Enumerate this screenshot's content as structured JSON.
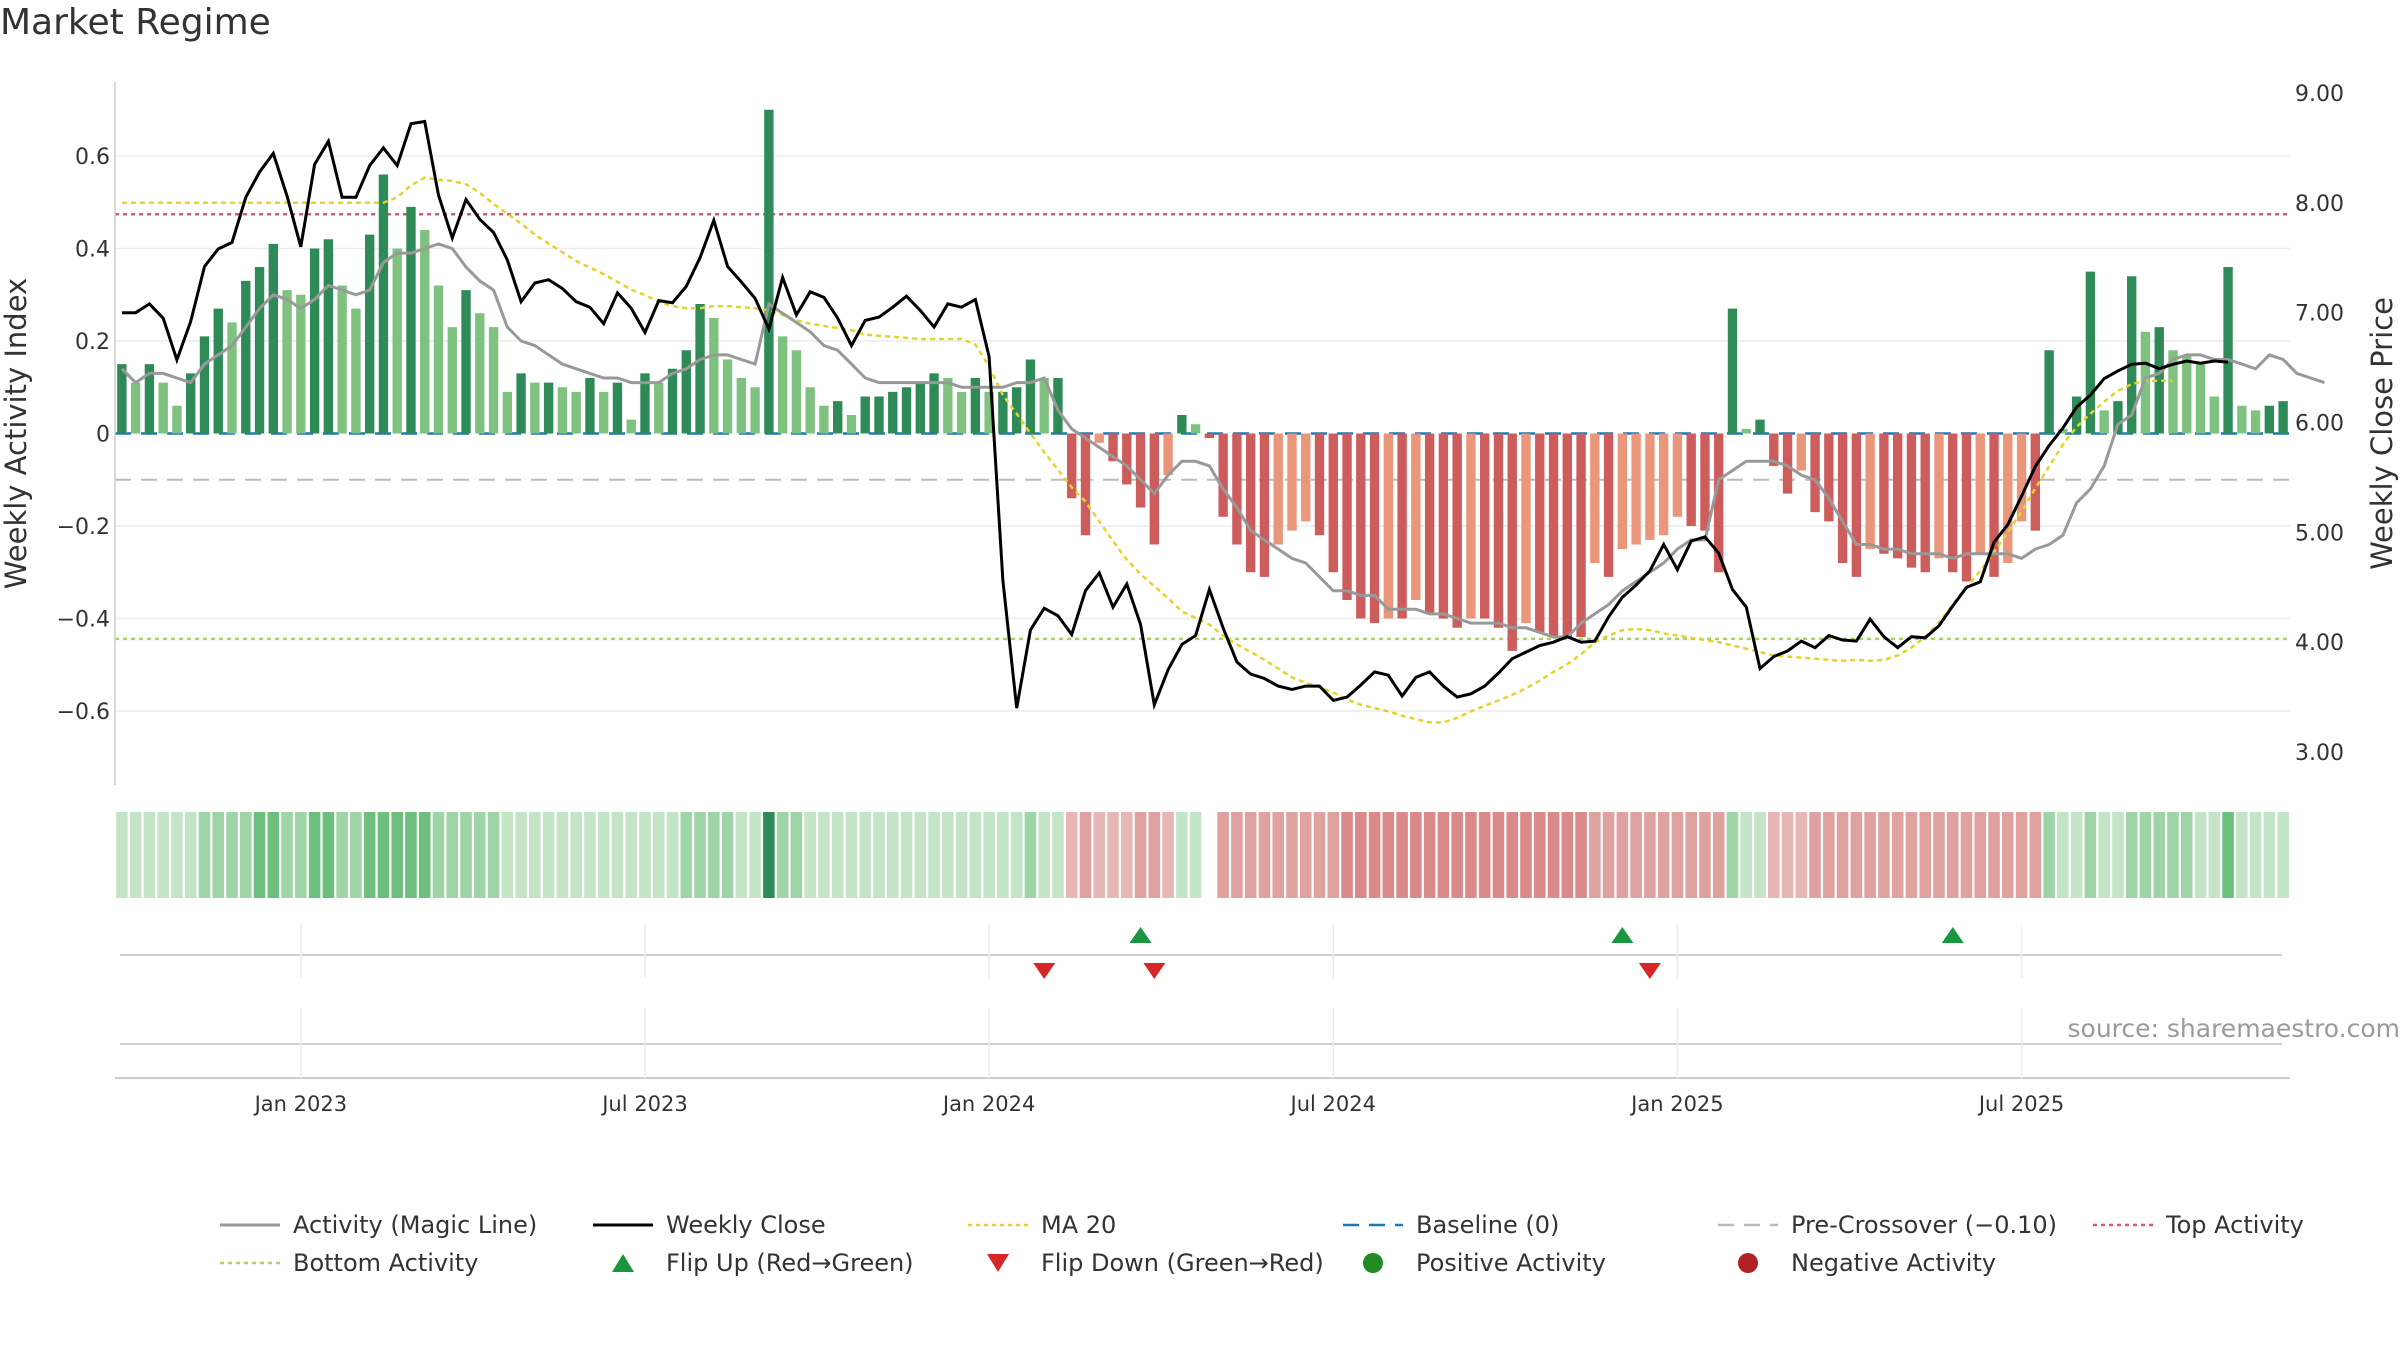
{
  "title": "Market Regime",
  "source": "source: sharemaestro.com",
  "colors": {
    "pos_strong": "#2e8b57",
    "pos_weak": "#7fc27f",
    "neg_strong": "#cd5c5c",
    "neg_weak": "#e9967a",
    "close": "#000000",
    "magic": "#999999",
    "ma": "#e6d32a",
    "baseline": "#1f77b4",
    "precross": "#bbbbbb",
    "top": "#d9577a",
    "bottom": "#a3d65c",
    "flip_up": "#1a9641",
    "flip_down": "#d62728",
    "positive": "#228b22",
    "negative": "#b22222"
  },
  "chart_data": {
    "type": "bar+line",
    "title": "Market Regime",
    "y_left_label": "Weekly Activity Index",
    "y_right_label": "Weekly Close Price",
    "y_left_ticks": [
      0.6,
      0.4,
      0.2,
      0,
      -0.2,
      -0.4,
      -0.6
    ],
    "y_left_tick_labels": [
      "0.6",
      "0.4",
      "0.2",
      "0",
      "−0.2",
      "−0.4",
      "−0.6"
    ],
    "y_left_range": [
      -0.76,
      0.76
    ],
    "y_right_ticks": [
      9,
      8,
      7,
      6,
      5,
      4,
      3
    ],
    "y_right_tick_labels": [
      "9.00",
      "8.00",
      "7.00",
      "6.00",
      "5.00",
      "4.00",
      "3.00"
    ],
    "y_right_range": [
      2.7,
      9.1
    ],
    "x_tick_labels": [
      "Jan 2023",
      "Jul 2023",
      "Jan 2024",
      "Jul 2024",
      "Jan 2025",
      "Jul 2025"
    ],
    "x_tick_week_index": [
      13,
      38,
      63,
      88,
      113,
      138
    ],
    "top_activity": 0.474,
    "bottom_activity": -0.444,
    "pre_crossover": -0.1,
    "baseline": 0,
    "activity_index": [
      0.15,
      0.11,
      0.15,
      0.11,
      0.06,
      0.13,
      0.21,
      0.27,
      0.24,
      0.33,
      0.36,
      0.41,
      0.31,
      0.3,
      0.4,
      0.42,
      0.32,
      0.27,
      0.43,
      0.56,
      0.4,
      0.49,
      0.44,
      0.32,
      0.23,
      0.31,
      0.26,
      0.23,
      0.09,
      0.13,
      0.11,
      0.11,
      0.1,
      0.09,
      0.12,
      0.09,
      0.11,
      0.03,
      0.13,
      0.11,
      0.14,
      0.18,
      0.28,
      0.25,
      0.16,
      0.12,
      0.1,
      0.7,
      0.21,
      0.18,
      0.1,
      0.06,
      0.07,
      0.04,
      0.08,
      0.08,
      0.09,
      0.1,
      0.11,
      0.13,
      0.12,
      0.09,
      0.12,
      0.09,
      0.09,
      0.1,
      0.16,
      0.12,
      0.12,
      -0.14,
      -0.22,
      -0.02,
      -0.06,
      -0.11,
      -0.16,
      -0.24,
      -0.09,
      0.04,
      0.02,
      -0.01,
      -0.18,
      -0.24,
      -0.3,
      -0.31,
      -0.24,
      -0.21,
      -0.19,
      -0.22,
      -0.3,
      -0.36,
      -0.4,
      -0.41,
      -0.4,
      -0.4,
      -0.36,
      -0.39,
      -0.4,
      -0.42,
      -0.4,
      -0.4,
      -0.42,
      -0.47,
      -0.41,
      -0.43,
      -0.44,
      -0.44,
      -0.44,
      -0.28,
      -0.31,
      -0.25,
      -0.24,
      -0.23,
      -0.22,
      -0.18,
      -0.2,
      -0.21,
      -0.3,
      0.27,
      0.01,
      0.03,
      -0.07,
      -0.13,
      -0.08,
      -0.17,
      -0.19,
      -0.28,
      -0.31,
      -0.25,
      -0.26,
      -0.27,
      -0.29,
      -0.3,
      -0.27,
      -0.3,
      -0.32,
      -0.26,
      -0.31,
      -0.28,
      -0.19,
      -0.21,
      0.18,
      0.01,
      0.08,
      0.35,
      0.05,
      0.07,
      0.34,
      0.22,
      0.23,
      0.18,
      0.17,
      0.15,
      0.08,
      0.36,
      0.06,
      0.05,
      0.06,
      0.07
    ],
    "weekly_close": [
      7.0,
      7.0,
      7.08,
      6.95,
      6.57,
      6.92,
      7.42,
      7.58,
      7.64,
      8.05,
      8.28,
      8.45,
      8.06,
      7.6,
      8.35,
      8.56,
      8.05,
      8.05,
      8.34,
      8.5,
      8.34,
      8.72,
      8.74,
      8.07,
      7.68,
      8.03,
      7.85,
      7.73,
      7.48,
      7.1,
      7.27,
      7.3,
      7.22,
      7.1,
      7.05,
      6.9,
      7.18,
      7.04,
      6.82,
      7.11,
      7.09,
      7.24,
      7.5,
      7.84,
      7.42,
      7.28,
      7.13,
      6.85,
      7.32,
      6.98,
      7.19,
      7.14,
      6.95,
      6.7,
      6.93,
      6.96,
      7.05,
      7.15,
      7.02,
      6.87,
      7.08,
      7.05,
      7.12,
      6.6,
      4.56,
      3.4,
      4.11,
      4.31,
      4.24,
      4.07,
      4.47,
      4.63,
      4.32,
      4.53,
      4.16,
      3.43,
      3.75,
      3.98,
      4.06,
      4.48,
      4.13,
      3.82,
      3.71,
      3.67,
      3.6,
      3.57,
      3.6,
      3.6,
      3.47,
      3.5,
      3.61,
      3.73,
      3.7,
      3.51,
      3.68,
      3.73,
      3.6,
      3.5,
      3.53,
      3.6,
      3.72,
      3.85,
      3.91,
      3.97,
      4.0,
      4.05,
      4.0,
      4.01,
      4.23,
      4.41,
      4.52,
      4.65,
      4.89,
      4.66,
      4.92,
      4.96,
      4.81,
      4.48,
      4.32,
      3.76,
      3.87,
      3.92,
      4.01,
      3.95,
      4.06,
      4.02,
      4.01,
      4.21,
      4.05,
      3.95,
      4.05,
      4.04,
      4.15,
      4.33,
      4.5,
      4.55,
      4.91,
      5.07,
      5.33,
      5.6,
      5.79,
      5.95,
      6.14,
      6.25,
      6.4,
      6.47,
      6.53,
      6.54,
      6.49,
      6.53,
      6.56,
      6.54,
      6.56,
      6.55
    ],
    "magic_line": [
      0.14,
      0.11,
      0.13,
      0.13,
      0.12,
      0.11,
      0.15,
      0.17,
      0.19,
      0.23,
      0.27,
      0.3,
      0.29,
      0.27,
      0.29,
      0.32,
      0.31,
      0.3,
      0.31,
      0.37,
      0.39,
      0.39,
      0.4,
      0.41,
      0.4,
      0.36,
      0.33,
      0.31,
      0.23,
      0.2,
      0.19,
      0.17,
      0.15,
      0.14,
      0.13,
      0.12,
      0.12,
      0.11,
      0.11,
      0.11,
      0.13,
      0.14,
      0.16,
      0.17,
      0.17,
      0.16,
      0.15,
      0.28,
      0.26,
      0.24,
      0.22,
      0.19,
      0.18,
      0.15,
      0.12,
      0.11,
      0.11,
      0.11,
      0.11,
      0.11,
      0.11,
      0.1,
      0.1,
      0.1,
      0.1,
      0.11,
      0.11,
      0.12,
      0.05,
      0.01,
      -0.01,
      -0.03,
      -0.05,
      -0.07,
      -0.1,
      -0.13,
      -0.09,
      -0.06,
      -0.06,
      -0.07,
      -0.12,
      -0.16,
      -0.21,
      -0.23,
      -0.25,
      -0.27,
      -0.28,
      -0.31,
      -0.34,
      -0.34,
      -0.35,
      -0.35,
      -0.38,
      -0.38,
      -0.38,
      -0.39,
      -0.39,
      -0.4,
      -0.41,
      -0.41,
      -0.41,
      -0.42,
      -0.42,
      -0.43,
      -0.44,
      -0.44,
      -0.41,
      -0.39,
      -0.37,
      -0.34,
      -0.32,
      -0.3,
      -0.28,
      -0.25,
      -0.23,
      -0.23,
      -0.1,
      -0.08,
      -0.06,
      -0.06,
      -0.06,
      -0.07,
      -0.09,
      -0.1,
      -0.14,
      -0.19,
      -0.24,
      -0.24,
      -0.25,
      -0.25,
      -0.26,
      -0.26,
      -0.26,
      -0.27,
      -0.26,
      -0.26,
      -0.26,
      -0.26,
      -0.27,
      -0.25,
      -0.24,
      -0.22,
      -0.15,
      -0.12,
      -0.07,
      0.02,
      0.04,
      0.12,
      0.13,
      0.16,
      0.17,
      0.17,
      0.16,
      0.16,
      0.15,
      0.14,
      0.17,
      0.16,
      0.13,
      0.12,
      0.11
    ],
    "ma20": [
      8.0,
      8.0,
      8.0,
      8.0,
      8.0,
      8.0,
      8.0,
      8.0,
      8.0,
      8.0,
      8.0,
      8.0,
      8.0,
      8.0,
      8.0,
      8.0,
      8.0,
      8.0,
      8.0,
      8.0,
      8.05,
      8.16,
      8.23,
      8.21,
      8.2,
      8.17,
      8.09,
      7.99,
      7.9,
      7.81,
      7.71,
      7.63,
      7.55,
      7.47,
      7.41,
      7.35,
      7.28,
      7.21,
      7.16,
      7.1,
      7.06,
      7.04,
      7.04,
      7.06,
      7.06,
      7.05,
      7.04,
      7.02,
      6.98,
      6.93,
      6.9,
      6.88,
      6.86,
      6.84,
      6.8,
      6.79,
      6.78,
      6.77,
      6.76,
      6.76,
      6.76,
      6.76,
      6.71,
      6.51,
      6.25,
      6.08,
      5.9,
      5.73,
      5.57,
      5.41,
      5.28,
      5.1,
      4.92,
      4.75,
      4.62,
      4.51,
      4.4,
      4.28,
      4.22,
      4.16,
      4.06,
      3.98,
      3.91,
      3.84,
      3.76,
      3.68,
      3.63,
      3.59,
      3.54,
      3.48,
      3.43,
      3.4,
      3.37,
      3.33,
      3.3,
      3.27,
      3.27,
      3.31,
      3.37,
      3.42,
      3.47,
      3.52,
      3.58,
      3.65,
      3.73,
      3.8,
      3.89,
      4.0,
      4.06,
      4.11,
      4.12,
      4.11,
      4.08,
      4.06,
      4.04,
      4.02,
      4.0,
      3.97,
      3.94,
      3.91,
      3.88,
      3.87,
      3.86,
      3.85,
      3.84,
      3.83,
      3.84,
      3.83,
      3.84,
      3.88,
      3.95,
      4.05,
      4.18,
      4.34,
      4.5,
      4.65,
      4.82,
      5.0,
      5.19,
      5.4,
      5.6,
      5.8,
      5.96,
      6.08,
      6.19,
      6.29,
      6.35,
      6.38,
      6.38,
      6.38
    ],
    "flip_up_weeks": [
      74,
      109,
      133
    ],
    "flip_down_weeks": [
      67,
      75,
      111
    ]
  },
  "legend": [
    {
      "label": "Activity (Magic Line)",
      "symbol": "line",
      "color": "#999999"
    },
    {
      "label": "Weekly Close",
      "symbol": "line",
      "color": "#000000"
    },
    {
      "label": "MA 20",
      "symbol": "dotted",
      "color": "#e6d32a"
    },
    {
      "label": "Baseline (0)",
      "symbol": "dashed",
      "color": "#1f77b4"
    },
    {
      "label": "Pre-Crossover (−0.10)",
      "symbol": "dashed",
      "color": "#bbbbbb"
    },
    {
      "label": "Top Activity",
      "symbol": "dotted",
      "color": "#d9577a"
    },
    {
      "label": "Bottom Activity",
      "symbol": "dotted",
      "color": "#a3d65c"
    },
    {
      "label": "Flip Up (Red→Green)",
      "symbol": "triangle-up",
      "color": "#1a9641"
    },
    {
      "label": "Flip Down (Green→Red)",
      "symbol": "triangle-down",
      "color": "#d62728"
    },
    {
      "label": "Positive Activity",
      "symbol": "dot",
      "color": "#228b22"
    },
    {
      "label": "Negative Activity",
      "symbol": "dot",
      "color": "#b22222"
    }
  ]
}
